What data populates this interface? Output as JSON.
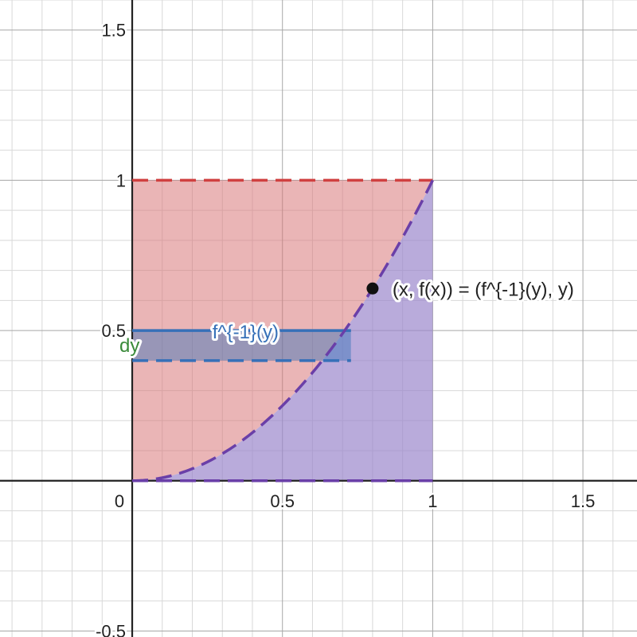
{
  "chart_data": {
    "type": "area",
    "xlim": [
      -0.44,
      1.68
    ],
    "ylim": [
      -0.52,
      1.6
    ],
    "grid": true,
    "x_ticks": [
      "0",
      "0.5",
      "1",
      "1.5"
    ],
    "y_ticks": [
      "1.5",
      "1",
      "0.5",
      "-0.5"
    ],
    "x_tick_values": [
      0,
      0.5,
      1,
      1.5
    ],
    "y_tick_values": [
      1.5,
      1,
      0.5,
      -0.5
    ],
    "curve": {
      "expression": "y = x^2",
      "color": "#6a3fa8",
      "x": [
        0,
        0.1,
        0.2,
        0.3,
        0.4,
        0.5,
        0.6,
        0.7,
        0.8,
        0.9,
        1.0
      ],
      "y": [
        0,
        0.01,
        0.04,
        0.09,
        0.16,
        0.25,
        0.36,
        0.49,
        0.64,
        0.81,
        1.0
      ]
    },
    "regions": [
      {
        "name": "region between y-axis and curve",
        "color": "#d9787a",
        "opacity": 0.55
      },
      {
        "name": "region under curve",
        "color": "#9b87cc",
        "opacity": 0.7
      }
    ],
    "boundary_lines": [
      {
        "y": 1,
        "x_range": [
          0,
          1
        ],
        "color": "#d04040",
        "style": "dashed"
      },
      {
        "y": 0,
        "x_range": [
          0,
          1
        ],
        "color": "#6a3fa8",
        "style": "dashed"
      }
    ],
    "strip": {
      "y_bottom": 0.4,
      "y_top": 0.5,
      "x_right": 0.728,
      "color": "#3670b8",
      "top_label": "f^{-1}(y)",
      "side_label": "dy",
      "side_label_color": "#3a8a3a"
    },
    "point": {
      "x": 0.8,
      "y": 0.64,
      "label": "(x, f(x)) = (f^{-1}(y), y)",
      "color": "#111111"
    }
  }
}
